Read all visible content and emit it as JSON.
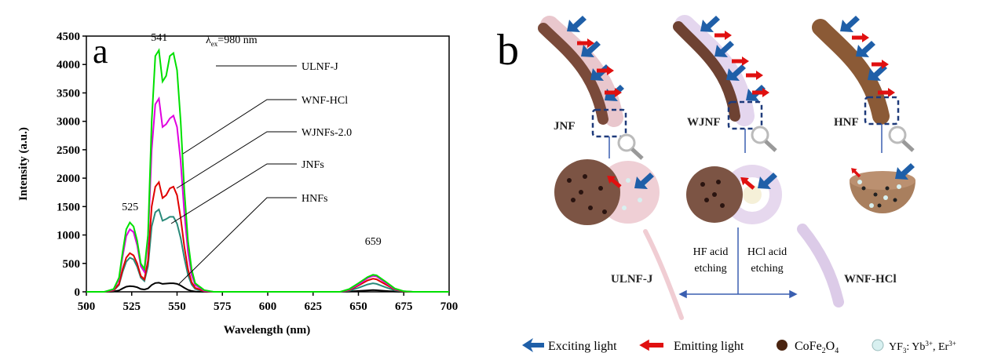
{
  "chart_data": {
    "type": "line",
    "panel_label": "a",
    "x_label": "Wavelength (nm)",
    "y_label": "Intensity (a.u.)",
    "excitation": {
      "symbol": "λ",
      "sub": "ex",
      "text": "=980 nm"
    },
    "peak_labels": [
      525,
      541,
      659
    ],
    "x": [
      500,
      510,
      515,
      518,
      520,
      522,
      524,
      526,
      528,
      530,
      532,
      534,
      536,
      538,
      540,
      542,
      544,
      546,
      548,
      550,
      552,
      554,
      556,
      558,
      560,
      565,
      570,
      600,
      640,
      645,
      650,
      655,
      658,
      660,
      665,
      670,
      675,
      680,
      700
    ],
    "series": [
      {
        "name": "ULNF-J",
        "color": "#00e000",
        "values": [
          0,
          0,
          50,
          250,
          700,
          1100,
          1220,
          1150,
          900,
          500,
          400,
          1000,
          3000,
          4150,
          4250,
          3700,
          3800,
          4150,
          4200,
          3900,
          3000,
          1800,
          900,
          400,
          150,
          30,
          0,
          0,
          0,
          50,
          150,
          260,
          300,
          290,
          180,
          60,
          10,
          0,
          0
        ]
      },
      {
        "name": "WNF-HCl",
        "color": "#e000e0",
        "values": [
          0,
          0,
          40,
          220,
          620,
          980,
          1100,
          1050,
          820,
          450,
          350,
          900,
          2500,
          3300,
          3400,
          2900,
          2950,
          3050,
          3100,
          2900,
          2300,
          1400,
          700,
          300,
          120,
          20,
          0,
          0,
          0,
          40,
          130,
          240,
          280,
          270,
          160,
          50,
          10,
          0,
          0
        ]
      },
      {
        "name": "WJNFs-2.0",
        "color": "#e00000",
        "values": [
          0,
          0,
          25,
          140,
          400,
          600,
          680,
          640,
          500,
          280,
          220,
          550,
          1500,
          1850,
          1930,
          1650,
          1700,
          1820,
          1850,
          1700,
          1300,
          800,
          400,
          170,
          70,
          10,
          0,
          0,
          0,
          30,
          110,
          200,
          230,
          220,
          130,
          40,
          5,
          0,
          0
        ]
      },
      {
        "name": "JNFs",
        "color": "#2a8a7a",
        "values": [
          0,
          0,
          20,
          120,
          350,
          530,
          600,
          570,
          440,
          250,
          190,
          450,
          1150,
          1400,
          1450,
          1250,
          1280,
          1320,
          1320,
          1200,
          950,
          600,
          300,
          130,
          50,
          8,
          0,
          0,
          0,
          20,
          70,
          130,
          150,
          140,
          80,
          25,
          5,
          0,
          0
        ]
      },
      {
        "name": "HNFs",
        "color": "#000000",
        "values": [
          0,
          0,
          5,
          25,
          60,
          90,
          100,
          95,
          80,
          50,
          40,
          60,
          120,
          155,
          160,
          140,
          145,
          150,
          150,
          140,
          110,
          70,
          35,
          15,
          5,
          0,
          0,
          0,
          0,
          5,
          15,
          25,
          30,
          28,
          15,
          5,
          0,
          0,
          0
        ]
      }
    ],
    "xlim": [
      500,
      700
    ],
    "xticks": [
      500,
      525,
      550,
      575,
      600,
      625,
      650,
      675,
      700
    ],
    "ylim": [
      0,
      4500
    ],
    "yticks": [
      0,
      500,
      1000,
      1500,
      2000,
      2500,
      3000,
      3500,
      4000,
      4500
    ]
  },
  "diagram": {
    "panel_label": "b",
    "fibers": [
      "JNF",
      "WJNF",
      "HNF"
    ],
    "products": [
      "ULNF-J",
      "WNF-HCl"
    ],
    "etching": [
      [
        "HF acid",
        "etching"
      ],
      [
        "HCl acid",
        "etching"
      ]
    ],
    "legend": {
      "exciting": "Exciting light",
      "emitting": "Emitting light",
      "cofe": [
        "CoFe",
        "2",
        "O",
        "4"
      ],
      "yf": [
        "YF",
        "3",
        ": Yb",
        "3+",
        ", Er",
        "3+"
      ]
    }
  }
}
